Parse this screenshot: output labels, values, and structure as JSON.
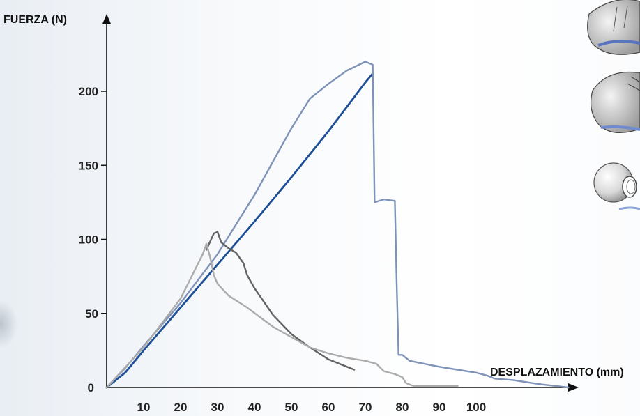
{
  "chart_data": {
    "type": "line",
    "xlabel": "DESPLAZAMIENTO (mm)",
    "ylabel": "FUERZA (N)",
    "xlim": [
      0,
      125
    ],
    "ylim": [
      0,
      240
    ],
    "x_ticks": [
      10,
      20,
      30,
      40,
      50,
      60,
      70,
      80,
      90,
      100
    ],
    "y_ticks": [
      0,
      50,
      100,
      150,
      200
    ],
    "grid": false,
    "series": [
      {
        "color": "#1c4f96",
        "points": [
          [
            0,
            0
          ],
          [
            5,
            10
          ],
          [
            10,
            25
          ],
          [
            20,
            54
          ],
          [
            30,
            83
          ],
          [
            40,
            112
          ],
          [
            50,
            142
          ],
          [
            60,
            173
          ],
          [
            70,
            206
          ],
          [
            72,
            212
          ]
        ]
      },
      {
        "color": "#7f92b8",
        "points": [
          [
            0,
            0
          ],
          [
            5,
            13
          ],
          [
            10,
            28
          ],
          [
            20,
            57
          ],
          [
            30,
            90
          ],
          [
            40,
            130
          ],
          [
            50,
            175
          ],
          [
            55,
            195
          ],
          [
            60,
            205
          ],
          [
            65,
            214
          ],
          [
            70,
            220
          ],
          [
            72,
            218
          ],
          [
            72.5,
            125
          ],
          [
            75,
            127
          ],
          [
            78,
            126
          ],
          [
            78.5,
            70
          ],
          [
            79,
            22
          ],
          [
            80,
            22
          ],
          [
            82,
            18
          ],
          [
            90,
            14
          ],
          [
            100,
            10
          ],
          [
            103,
            8
          ],
          [
            105,
            6
          ],
          [
            110,
            5
          ],
          [
            115,
            3
          ],
          [
            118,
            2
          ],
          [
            125,
            0
          ]
        ]
      },
      {
        "color": "#626262",
        "points": [
          [
            27,
            93
          ],
          [
            29,
            104
          ],
          [
            30,
            105
          ],
          [
            31,
            98
          ],
          [
            33,
            94
          ],
          [
            35,
            91
          ],
          [
            37,
            84
          ],
          [
            38,
            76
          ],
          [
            40,
            67
          ],
          [
            45,
            49
          ],
          [
            50,
            36
          ],
          [
            55,
            27
          ],
          [
            60,
            19
          ],
          [
            65,
            14
          ],
          [
            67,
            12
          ]
        ]
      },
      {
        "color": "#ababab",
        "points": [
          [
            0,
            0
          ],
          [
            10,
            27
          ],
          [
            20,
            60
          ],
          [
            26,
            90
          ],
          [
            27,
            97
          ],
          [
            28,
            88
          ],
          [
            29,
            76
          ],
          [
            30,
            70
          ],
          [
            33,
            62
          ],
          [
            38,
            54
          ],
          [
            45,
            41
          ],
          [
            50,
            34
          ],
          [
            55,
            27
          ],
          [
            60,
            23
          ],
          [
            65,
            20
          ],
          [
            70,
            18
          ],
          [
            73,
            16
          ],
          [
            75,
            11
          ],
          [
            78,
            9
          ],
          [
            80,
            7
          ],
          [
            81,
            3
          ],
          [
            83,
            1
          ],
          [
            95,
            1
          ]
        ]
      }
    ]
  },
  "thumbnails": [
    {
      "icon": "broken-shell-half-icon"
    },
    {
      "icon": "broken-shell-cracked-icon"
    },
    {
      "icon": "intact-shell-ball-icon"
    }
  ]
}
